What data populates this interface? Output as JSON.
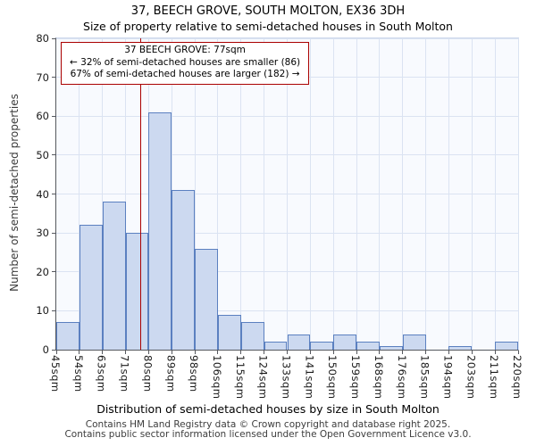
{
  "header": {
    "title": "37, BEECH GROVE, SOUTH MOLTON, EX36 3DH",
    "subtitle": "Size of property relative to semi-detached houses in South Molton"
  },
  "chart_data": {
    "type": "bar",
    "title": "37, BEECH GROVE, SOUTH MOLTON, EX36 3DH",
    "subtitle": "Size of property relative to semi-detached houses in South Molton",
    "xlabel": "Distribution of semi-detached houses by size in South Molton",
    "ylabel": "Number of semi-detached properties",
    "ylim": [
      0,
      80
    ],
    "ytick_step": 10,
    "grid": true,
    "legend": false,
    "bin_edges": [
      45,
      54,
      63,
      71,
      80,
      89,
      98,
      106,
      115,
      124,
      133,
      141,
      150,
      159,
      168,
      176,
      185,
      194,
      203,
      211,
      220
    ],
    "tick_labels": [
      "45sqm",
      "54sqm",
      "63sqm",
      "71sqm",
      "80sqm",
      "89sqm",
      "98sqm",
      "106sqm",
      "115sqm",
      "124sqm",
      "133sqm",
      "141sqm",
      "150sqm",
      "159sqm",
      "168sqm",
      "176sqm",
      "185sqm",
      "194sqm",
      "203sqm",
      "211sqm",
      "220sqm"
    ],
    "values": [
      7,
      32,
      38,
      30,
      61,
      41,
      26,
      9,
      7,
      2,
      4,
      2,
      4,
      2,
      1,
      4,
      0,
      1,
      0,
      2
    ],
    "bar_fill": "#ccd9f0",
    "bar_border": "#5b80c0",
    "plot_bg": "#f8fafe",
    "grid_color": "#dbe3f2",
    "marker": {
      "value": 77,
      "color": "#aa0000",
      "annotation": [
        "37 BEECH GROVE: 77sqm",
        "← 32% of semi-detached houses are smaller (86)",
        "67% of semi-detached houses are larger (182) →"
      ]
    }
  },
  "footer": {
    "line1": "Contains HM Land Registry data © Crown copyright and database right 2025.",
    "line2": "Contains public sector information licensed under the Open Government Licence v3.0."
  }
}
